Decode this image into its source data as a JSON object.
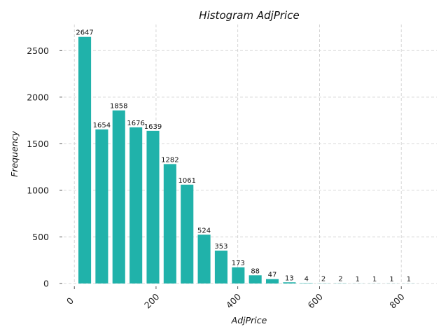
{
  "chart_data": {
    "type": "bar",
    "title": "Histogram AdjPrice",
    "xlabel": "AdjPrice",
    "ylabel": "Frequency",
    "bar_color": "#20B2AA",
    "grid": true,
    "xlim": [
      -26,
      887
    ],
    "ylim": [
      0,
      2780
    ],
    "x_ticks": [
      {
        "value": 0,
        "label": "0"
      },
      {
        "value": 200,
        "label": "200"
      },
      {
        "value": 400,
        "label": "400"
      },
      {
        "value": 600,
        "label": "600"
      },
      {
        "value": 800,
        "label": "800"
      }
    ],
    "y_ticks": [
      {
        "value": 0,
        "label": "0"
      },
      {
        "value": 500,
        "label": "500"
      },
      {
        "value": 1000,
        "label": "1000"
      },
      {
        "value": 1500,
        "label": "1500"
      },
      {
        "value": 2000,
        "label": "2000"
      },
      {
        "value": 2500,
        "label": "2500"
      }
    ],
    "bins": [
      {
        "start": 10.0,
        "end": 41.0,
        "value": 2647
      },
      {
        "start": 51.7,
        "end": 82.7,
        "value": 1654
      },
      {
        "start": 93.4,
        "end": 124.4,
        "value": 1858
      },
      {
        "start": 135.2,
        "end": 166.2,
        "value": 1676
      },
      {
        "start": 176.9,
        "end": 207.9,
        "value": 1639
      },
      {
        "start": 218.6,
        "end": 249.6,
        "value": 1282
      },
      {
        "start": 260.4,
        "end": 291.4,
        "value": 1061
      },
      {
        "start": 302.1,
        "end": 333.1,
        "value": 524
      },
      {
        "start": 343.8,
        "end": 374.8,
        "value": 353
      },
      {
        "start": 385.6,
        "end": 416.6,
        "value": 173
      },
      {
        "start": 427.3,
        "end": 458.3,
        "value": 88
      },
      {
        "start": 469.0,
        "end": 500.0,
        "value": 47
      },
      {
        "start": 510.8,
        "end": 541.8,
        "value": 13
      },
      {
        "start": 552.5,
        "end": 583.5,
        "value": 4
      },
      {
        "start": 594.2,
        "end": 625.2,
        "value": 2
      },
      {
        "start": 636.0,
        "end": 667.0,
        "value": 2
      },
      {
        "start": 677.7,
        "end": 708.7,
        "value": 1
      },
      {
        "start": 719.4,
        "end": 750.4,
        "value": 1
      },
      {
        "start": 761.2,
        "end": 792.2,
        "value": 1
      },
      {
        "start": 802.9,
        "end": 833.9,
        "value": 1
      }
    ]
  }
}
